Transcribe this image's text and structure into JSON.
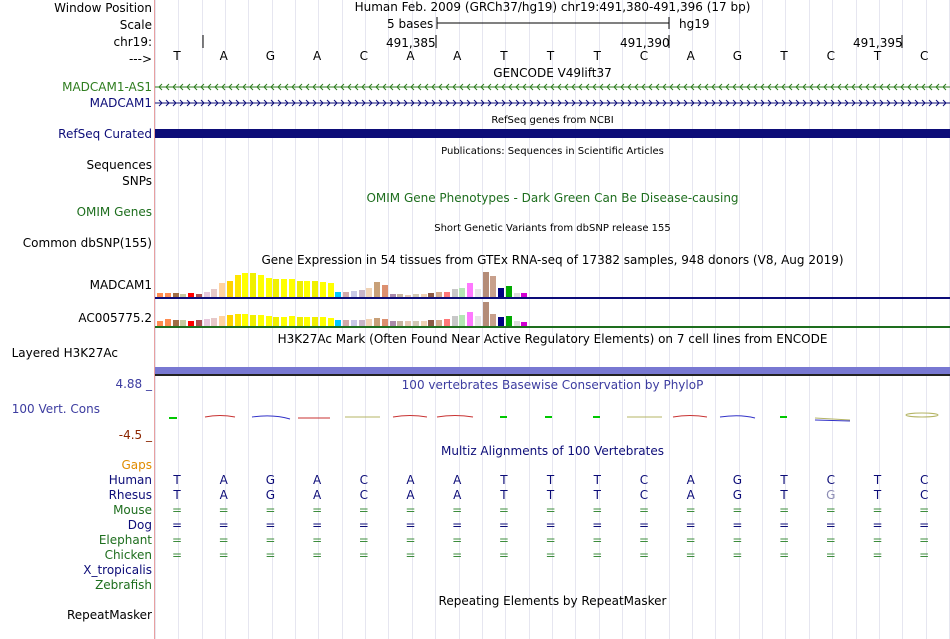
{
  "labels": {
    "window_position": "Window Position",
    "scale": "Scale",
    "chrom": "chr19:",
    "strand": "--->",
    "madcam1_as1": "MADCAM1-AS1",
    "madcam1": "MADCAM1",
    "refseq": "RefSeq Curated",
    "sequences": "Sequences",
    "snps": "SNPs",
    "omim": "OMIM Genes",
    "dbsnp": "Common dbSNP(155)",
    "gtex_madcam1": "MADCAM1",
    "gtex_ac": "AC005775.2",
    "h3k27ac": "Layered H3K27Ac",
    "cons_max": "4.88 _",
    "cons": "100 Vert. Cons",
    "cons_min": "-4.5 _",
    "gaps": "Gaps",
    "species": [
      "Human",
      "Rhesus",
      "Mouse",
      "Dog",
      "Elephant",
      "Chicken",
      "X_tropicalis",
      "Zebrafish"
    ],
    "repeatmasker": "RepeatMasker"
  },
  "header": {
    "position": "Human Feb. 2009 (GRCh37/hg19)   chr19:491,380-491,396 (17 bp)",
    "scale_text": "5 bases",
    "assembly": "hg19",
    "coord1": "491,385",
    "coord2": "491,390",
    "coord3": "491,395"
  },
  "bases": [
    "T",
    "A",
    "G",
    "A",
    "C",
    "A",
    "A",
    "T",
    "T",
    "T",
    "C",
    "A",
    "G",
    "T",
    "C",
    "T",
    "C"
  ],
  "rhesus": [
    "T",
    "A",
    "G",
    "A",
    "C",
    "A",
    "A",
    "T",
    "T",
    "T",
    "C",
    "A",
    "G",
    "T",
    "G",
    "T",
    "C"
  ],
  "track_titles": {
    "gencode": "GENCODE V49lift37",
    "refseq": "RefSeq genes from NCBI",
    "publications": "Publications: Sequences in Scientific Articles",
    "omim": "OMIM Gene Phenotypes - Dark Green Can Be Disease-causing",
    "dbsnp": "Short Genetic Variants from dbSNP release 155",
    "gtex": "Gene Expression in 54 tissues from GTEx RNA-seq of 17382 samples, 948 donors (V8, Aug 2019)",
    "h3k27ac": "H3K27Ac Mark (Often Found Near Active Regulatory Elements) on 7 cell lines from ENCODE",
    "phylop": "100 vertebrates Basewise Conservation by PhyloP",
    "multiz": "Multiz Alignments of 100 Vertebrates",
    "repeatmasker": "Repeating Elements by RepeatMasker"
  },
  "colors": {
    "gencode_antisense": "#2e7d1e",
    "gencode_coding": "#0c0c78",
    "refseq": "#0c0c78",
    "omim": "#1e6e1e",
    "h3k27ac": "#7878d2",
    "cons_label": "#3c3ca0",
    "cons_min": "#8b2500",
    "gaps": "#e08c00",
    "divider": "#e8a0a0"
  },
  "gtex": {
    "tissue_colors": [
      "#ff8c50",
      "#ff8c50",
      "#a06e46",
      "#c8c8a0",
      "#ff0000",
      "#aa5050",
      "#e6c8dc",
      "#e6c8c8",
      "#ffd2a0",
      "#ffd200",
      "#ffe600",
      "#ffff00",
      "#f0f000",
      "#ffff00",
      "#ffff00",
      "#f0f000",
      "#ffff00",
      "#ffff00",
      "#eeee00",
      "#ffff00",
      "#f0f000",
      "#ffff00",
      "#ffff00",
      "#00c8ff",
      "#d2aaaa",
      "#c8c8e6",
      "#c8b4c8",
      "#f0d2b4",
      "#c8a078",
      "#dc9070",
      "#aa8aaa",
      "#c8b4a0",
      "#e6c8b4",
      "#d2c8b4",
      "#f0d2b4",
      "#8c5a46",
      "#d2aa8c",
      "#ff7878",
      "#c8c8c8",
      "#b4e6b4",
      "#ff78ff",
      "#e6e6e6",
      "#b48c78",
      "#c8a08c",
      "#000080",
      "#00aa00",
      "#dcdcdc",
      "#d200d2"
    ],
    "madcam1_values": [
      0.15,
      0.15,
      0.15,
      0.12,
      0.13,
      0.1,
      0.2,
      0.3,
      0.5,
      0.58,
      0.8,
      0.9,
      0.88,
      0.82,
      0.72,
      0.68,
      0.65,
      0.66,
      0.6,
      0.6,
      0.58,
      0.55,
      0.52,
      0.2,
      0.2,
      0.22,
      0.25,
      0.32,
      0.55,
      0.45,
      0.12,
      0.12,
      0.08,
      0.1,
      0.12,
      0.14,
      0.18,
      0.2,
      0.3,
      0.35,
      0.5,
      0.3,
      0.92,
      0.78,
      0.32,
      0.42,
      0.15,
      0.14
    ],
    "ac_values": [
      0.2,
      0.28,
      0.25,
      0.24,
      0.22,
      0.23,
      0.3,
      0.35,
      0.42,
      0.44,
      0.52,
      0.5,
      0.47,
      0.45,
      0.4,
      0.36,
      0.36,
      0.4,
      0.38,
      0.37,
      0.36,
      0.36,
      0.35,
      0.24,
      0.24,
      0.24,
      0.25,
      0.28,
      0.35,
      0.3,
      0.2,
      0.22,
      0.2,
      0.22,
      0.22,
      0.24,
      0.26,
      0.3,
      0.42,
      0.44,
      0.6,
      0.42,
      0.98,
      0.52,
      0.38,
      0.42,
      0.2,
      0.18
    ]
  }
}
